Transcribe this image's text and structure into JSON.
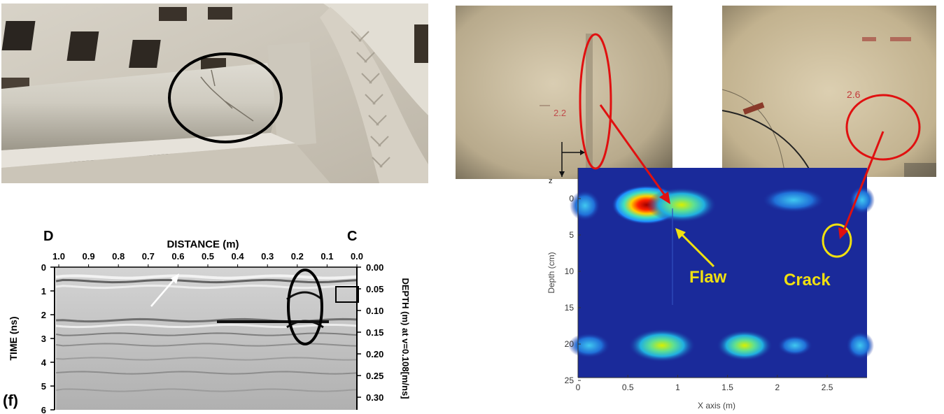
{
  "gpr_radargram": {
    "label_left": "D",
    "label_right": "C",
    "x_title": "DISTANCE (m)",
    "x_ticks": [
      "1.0",
      "0.9",
      "0.8",
      "0.7",
      "0.6",
      "0.5",
      "0.4",
      "0.3",
      "0.2",
      "0.1",
      "0.0"
    ],
    "y_left_title": "TIME (ns)",
    "y_left_ticks": [
      "0",
      "1",
      "2",
      "3",
      "4",
      "5",
      "6"
    ],
    "y_right_title": "DEPTH (m) at v=0.108[m/ns]",
    "y_right_ticks": [
      "0.00",
      "0.05",
      "0.10",
      "0.15",
      "0.20",
      "0.25",
      "0.30"
    ],
    "panel_label": "(f)"
  },
  "heatmap": {
    "ylabel": "Depth (cm)",
    "xlabel": "X axis (m)",
    "y_ticks": [
      "0",
      "5",
      "10",
      "15",
      "20",
      "25"
    ],
    "x_ticks": [
      "0",
      "0.5",
      "1",
      "1.5",
      "2",
      "2.5"
    ],
    "annotation_flaw": "Flaw",
    "annotation_crack": "Crack",
    "wall_marker_left": "2.2",
    "wall_marker_right": "2.6",
    "axis_marker_z": "z"
  },
  "colors": {
    "ellipse_black": "#000000",
    "annotation_red": "#e01010",
    "annotation_yellow": "#f0e010",
    "heatmap_background": "#1a2a9a"
  }
}
